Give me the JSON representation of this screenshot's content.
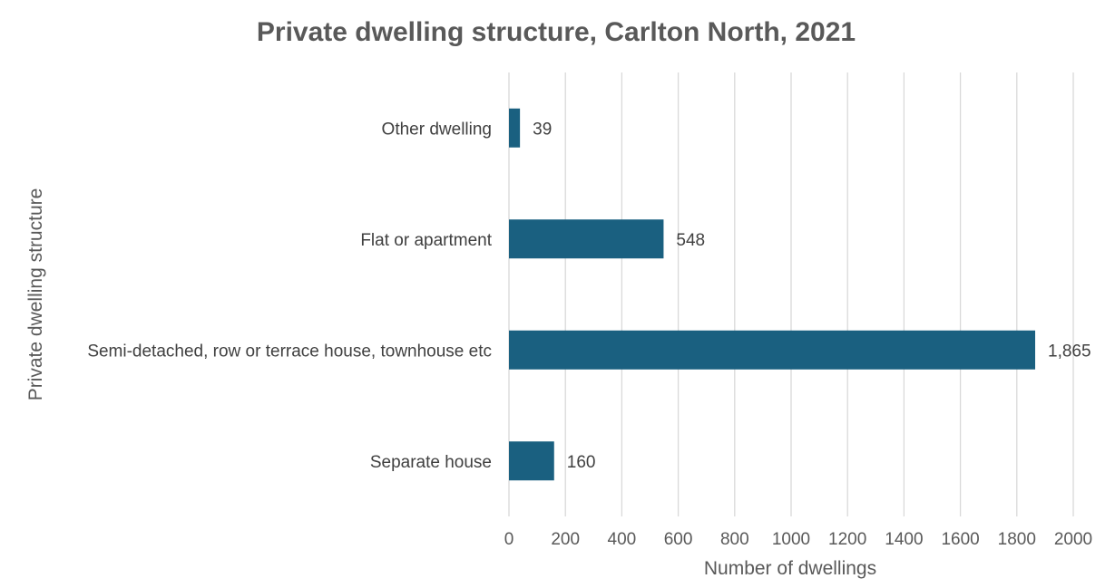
{
  "colors": {
    "bar": "#1a6080",
    "grid": "#d9d9d9",
    "text": "#595959"
  },
  "chart_data": {
    "type": "bar",
    "orientation": "horizontal",
    "title": "Private dwelling structure, Carlton North, 2021",
    "xlabel": "Number of dwellings",
    "ylabel": "Private dwelling structure",
    "categories": [
      "Other dwelling",
      "Flat or apartment",
      "Semi-detached, row or terrace house, townhouse etc",
      "Separate house"
    ],
    "values": [
      39,
      548,
      1865,
      160
    ],
    "data_labels": [
      "39",
      "548",
      "1,865",
      "160"
    ],
    "xlim": [
      0,
      2000
    ],
    "xticks": [
      0,
      200,
      400,
      600,
      800,
      1000,
      1200,
      1400,
      1600,
      1800,
      2000
    ],
    "grid": true,
    "legend": "none"
  }
}
